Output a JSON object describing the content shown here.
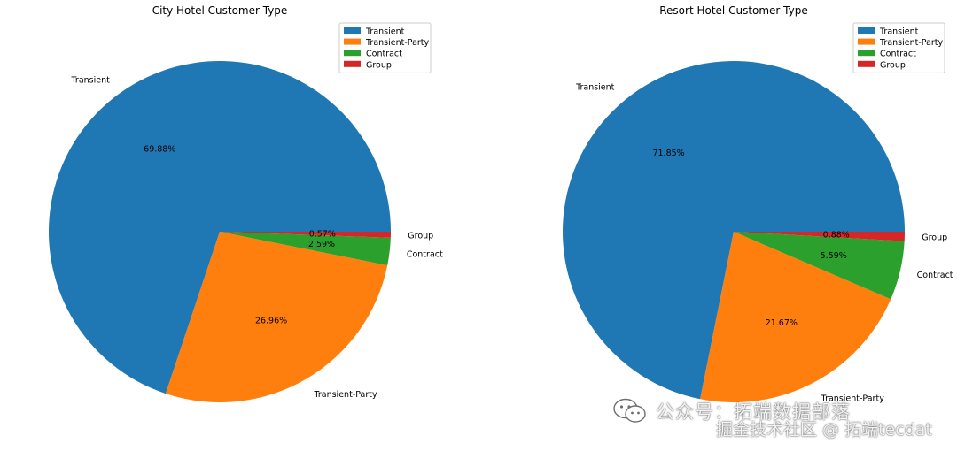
{
  "colors": {
    "Transient": "#1f77b4",
    "Transient-Party": "#ff7f0e",
    "Contract": "#2ca02c",
    "Group": "#d62728"
  },
  "chart_data": [
    {
      "type": "pie",
      "title": "City Hotel Customer Type",
      "categories": [
        "Transient",
        "Transient-Party",
        "Contract",
        "Group"
      ],
      "values": [
        69.88,
        26.96,
        2.59,
        0.57
      ],
      "value_labels": [
        "69.88%",
        "26.96%",
        "2.59%",
        "0.57%"
      ],
      "legend": [
        "Transient",
        "Transient-Party",
        "Contract",
        "Group"
      ],
      "legend_position": "top-right"
    },
    {
      "type": "pie",
      "title": "Resort Hotel Customer Type",
      "categories": [
        "Transient",
        "Transient-Party",
        "Contract",
        "Group"
      ],
      "values": [
        71.85,
        21.67,
        5.59,
        0.88
      ],
      "value_labels": [
        "71.85%",
        "21.67%",
        "5.59%",
        "0.88%"
      ],
      "legend": [
        "Transient",
        "Transient-Party",
        "Contract",
        "Group"
      ],
      "legend_position": "top-right"
    }
  ],
  "watermark": {
    "line1": "公众号：拓端数据部落",
    "line2": "掘金技术社区 @ 拓端tecdat"
  }
}
